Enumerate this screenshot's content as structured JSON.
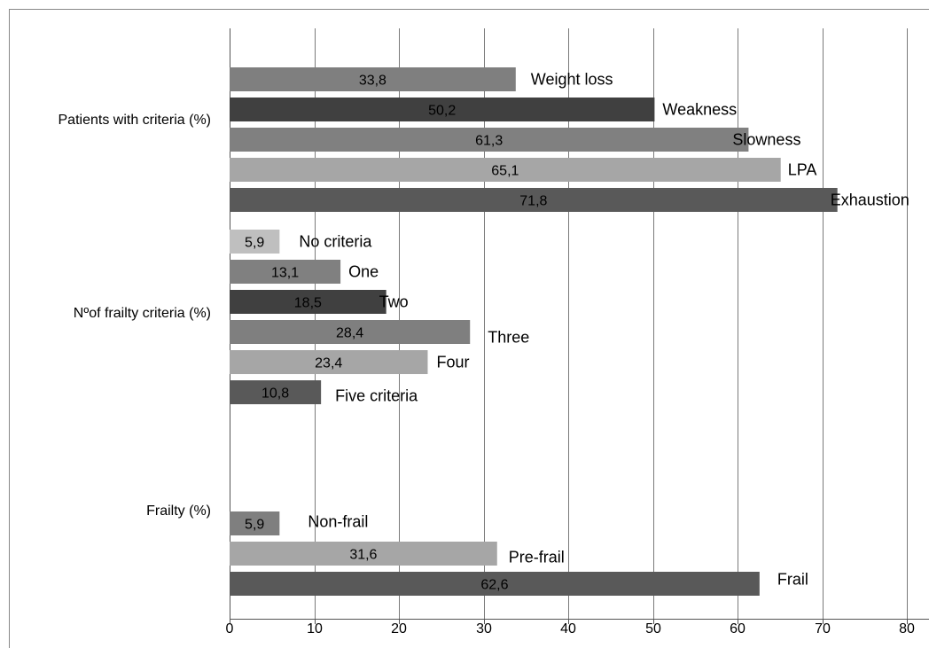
{
  "chart_data": {
    "type": "bar",
    "orientation": "horizontal",
    "title": "",
    "xlabel": "",
    "ylabel": "",
    "xlim": [
      0,
      80
    ],
    "xticks": [
      0,
      10,
      20,
      30,
      40,
      50,
      60,
      70,
      80
    ],
    "grid": "vertical",
    "legend": "none",
    "groups": [
      {
        "label": "Patients with criteria (%)",
        "bars": [
          {
            "name": "Weight loss",
            "value": 33.8,
            "value_label": "33,8",
            "color": "#7f7f7f"
          },
          {
            "name": "Weakness",
            "value": 50.2,
            "value_label": "50,2",
            "color": "#404040"
          },
          {
            "name": "Slowness",
            "value": 61.3,
            "value_label": "61,3",
            "color": "#808080"
          },
          {
            "name": "LPA",
            "value": 65.1,
            "value_label": "65,1",
            "color": "#a6a6a6"
          },
          {
            "name": "Exhaustion",
            "value": 71.8,
            "value_label": "71,8",
            "color": "#595959"
          }
        ]
      },
      {
        "label": "Nºof frailty criteria (%)",
        "bars": [
          {
            "name": "No criteria",
            "value": 5.9,
            "value_label": "5,9",
            "color": "#bfbfbf"
          },
          {
            "name": "One",
            "value": 13.1,
            "value_label": "13,1",
            "color": "#808080"
          },
          {
            "name": "Two",
            "value": 18.5,
            "value_label": "18,5",
            "color": "#404040"
          },
          {
            "name": "Three",
            "value": 28.4,
            "value_label": "28,4",
            "color": "#7f7f7f"
          },
          {
            "name": "Four",
            "value": 23.4,
            "value_label": "23,4",
            "color": "#a6a6a6"
          },
          {
            "name": "Five  criteria",
            "value": 10.8,
            "value_label": "10,8",
            "color": "#595959"
          }
        ]
      },
      {
        "label": "Frailty (%)",
        "bars": [
          {
            "name": "Non-frail",
            "value": 5.9,
            "value_label": "5,9",
            "color": "#7f7f7f"
          },
          {
            "name": "Pre-frail",
            "value": 31.6,
            "value_label": "31,6",
            "color": "#a6a6a6"
          },
          {
            "name": "Frail",
            "value": 62.6,
            "value_label": "62,6",
            "color": "#595959"
          }
        ]
      }
    ]
  }
}
